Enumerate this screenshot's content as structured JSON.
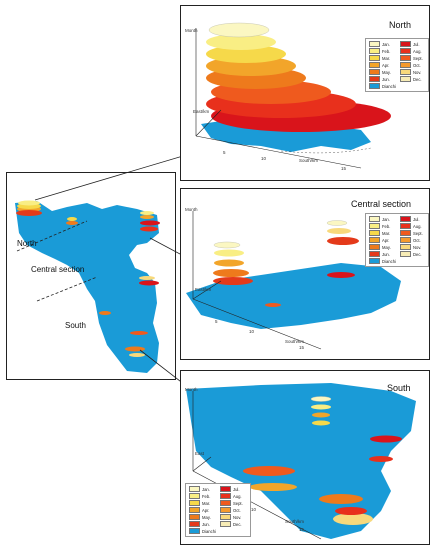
{
  "panels": {
    "overview": {
      "labels": {
        "north": "North",
        "central": "Central section",
        "south": "South"
      }
    },
    "north": {
      "title": "North",
      "axis": {
        "vertical": "Month",
        "east": "East/km",
        "south": "South/km"
      },
      "ticks": [
        "5",
        "10",
        "15"
      ]
    },
    "central": {
      "title": "Central section",
      "axis": {
        "vertical": "Month",
        "east": "East/km",
        "south": "South/km"
      },
      "ticks": [
        "5",
        "10",
        "15"
      ]
    },
    "south": {
      "title": "South",
      "axis": {
        "vertical": "Month",
        "east": "East",
        "south": "South/km"
      },
      "ticks": [
        "5",
        "10",
        "15"
      ]
    }
  },
  "legend": [
    {
      "label": "Jan.",
      "color": "#fbf7c2"
    },
    {
      "label": "Jul.",
      "color": "#d9141b"
    },
    {
      "label": "Feb.",
      "color": "#f9ee84"
    },
    {
      "label": "Aug.",
      "color": "#e8301c"
    },
    {
      "label": "Mar.",
      "color": "#f6d94a"
    },
    {
      "label": "Sept.",
      "color": "#ef5a1e"
    },
    {
      "label": "Apr.",
      "color": "#f2a52a"
    },
    {
      "label": "Oct.",
      "color": "#f59a2e"
    },
    {
      "label": "May.",
      "color": "#ee7a1c"
    },
    {
      "label": "Nov.",
      "color": "#f8d97c"
    },
    {
      "label": "Jun.",
      "color": "#e43a1a"
    },
    {
      "label": "Dec.",
      "color": "#f7ecb6"
    },
    {
      "label": "Dianchi",
      "color": "#1a9bd7"
    }
  ],
  "colors": {
    "lake": "#1a9bd7",
    "frame": "#222222"
  }
}
